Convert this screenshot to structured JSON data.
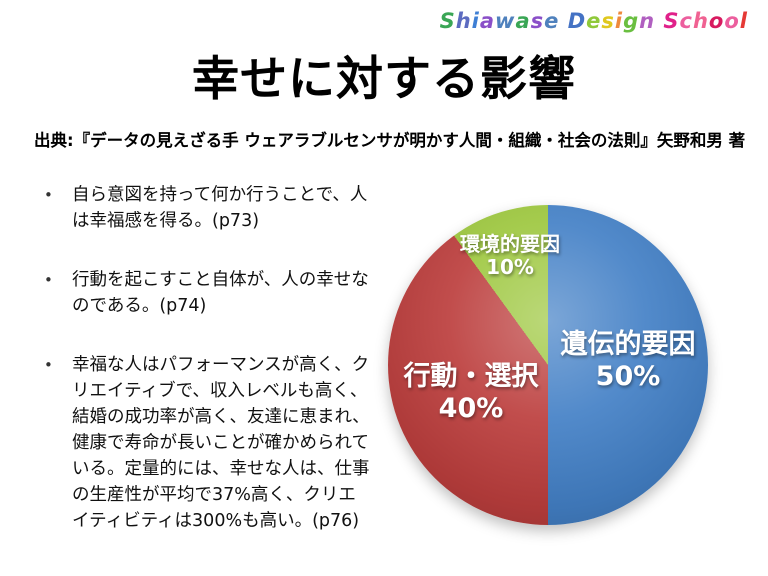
{
  "slide": {
    "title": "幸せに対する影響",
    "source": "出典:『データの見えざる手 ウェアラブルセンサが明かす人間・組織・社会の法則』矢野和男 著"
  },
  "logo": {
    "text": "Shiawase Design School",
    "letters": [
      {
        "ch": "S",
        "color": "#3aa655"
      },
      {
        "ch": "h",
        "color": "#5c6bc0"
      },
      {
        "ch": "i",
        "color": "#3f7fd4"
      },
      {
        "ch": "a",
        "color": "#8a4fc8"
      },
      {
        "ch": "w",
        "color": "#4f81bd"
      },
      {
        "ch": "a",
        "color": "#3aa655"
      },
      {
        "ch": "s",
        "color": "#8a4fc8"
      },
      {
        "ch": "e",
        "color": "#4f81bd"
      },
      {
        "ch": " ",
        "color": "#000000"
      },
      {
        "ch": "D",
        "color": "#4472c4"
      },
      {
        "ch": "e",
        "color": "#8fc93a"
      },
      {
        "ch": "s",
        "color": "#e0c81e"
      },
      {
        "ch": "i",
        "color": "#ef8a3c"
      },
      {
        "ch": "g",
        "color": "#6abf40"
      },
      {
        "ch": "n",
        "color": "#b05fc0"
      },
      {
        "ch": " ",
        "color": "#000000"
      },
      {
        "ch": "S",
        "color": "#e0218a"
      },
      {
        "ch": "c",
        "color": "#ec5f9e"
      },
      {
        "ch": "h",
        "color": "#f06292"
      },
      {
        "ch": "o",
        "color": "#d81b60"
      },
      {
        "ch": "o",
        "color": "#ec5f9e"
      },
      {
        "ch": "l",
        "color": "#e53935"
      }
    ]
  },
  "bullets": [
    "自ら意図を持って何か行うことで、人は幸福感を得る。(p73)",
    "行動を起こすこと自体が、人の幸せなのである。(p74)",
    "幸福な人はパフォーマンスが高く、クリエイティブで、収入レベルも高く、結婚の成功率が高く、友達に恵まれ、健康で寿命が長いことが確かめられている。定量的には、幸せな人は、仕事の生産性が平均で37%高く、クリエイティビティは300%も高い。(p76)"
  ],
  "chart_data": {
    "type": "pie",
    "title": "",
    "categories": [
      "遺伝的要因",
      "行動・選択",
      "環境的要因"
    ],
    "values": [
      50,
      40,
      10
    ],
    "value_labels": [
      "50%",
      "40%",
      "10%"
    ],
    "colors": [
      "#4380c6",
      "#bc3e3d",
      "#9dc73e"
    ],
    "start_angle_deg": 0,
    "direction": "clockwise",
    "label_position": "inside",
    "legend": "none"
  }
}
